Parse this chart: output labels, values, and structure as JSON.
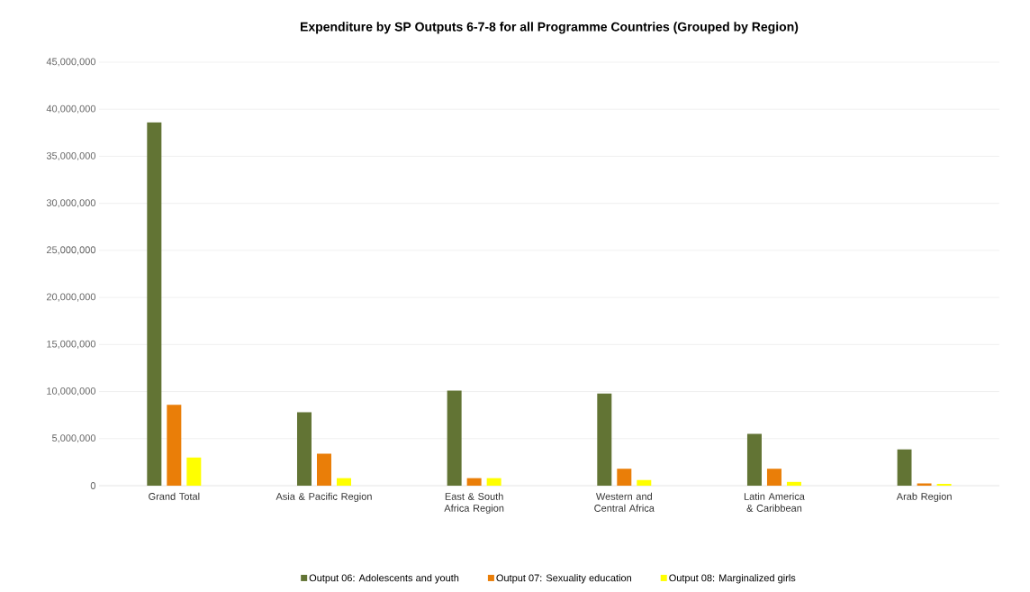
{
  "chart_data": {
    "type": "bar",
    "title": "Expenditure by SP Outputs 6-7-8 for all Programme Countries (Grouped by Region)",
    "categories": [
      "Grand Total",
      "Asia & Pacific Region",
      "East & South Africa Region",
      "Western and Central Africa",
      "Latin America & Caribbean",
      "Arab Region"
    ],
    "series": [
      {
        "name": "Output 06: Adolescents and youth",
        "color": "#627434",
        "values": [
          38600000,
          7800000,
          10100000,
          9800000,
          5500000,
          3850000
        ]
      },
      {
        "name": "Output 07: Sexuality education",
        "color": "#ea7e08",
        "values": [
          8600000,
          3400000,
          800000,
          1800000,
          1800000,
          250000
        ]
      },
      {
        "name": "Output 08: Marginalized girls",
        "color": "#ffff00",
        "values": [
          3000000,
          800000,
          800000,
          600000,
          400000,
          200000
        ]
      }
    ],
    "ylim": [
      0,
      45000000
    ],
    "yticks": [
      {
        "value": 0,
        "label": "0"
      },
      {
        "value": 5000000,
        "label": "5,000,000"
      },
      {
        "value": 10000000,
        "label": "10,000,000"
      },
      {
        "value": 15000000,
        "label": "15,000,000"
      },
      {
        "value": 20000000,
        "label": "20,000,000"
      },
      {
        "value": 25000000,
        "label": "25,000,000"
      },
      {
        "value": 30000000,
        "label": "30,000,000"
      },
      {
        "value": 35000000,
        "label": "35,000,000"
      },
      {
        "value": 40000000,
        "label": "40,000,000"
      },
      {
        "value": 45000000,
        "label": "45,000,000"
      }
    ],
    "grid": "y",
    "legend": "bottom"
  }
}
